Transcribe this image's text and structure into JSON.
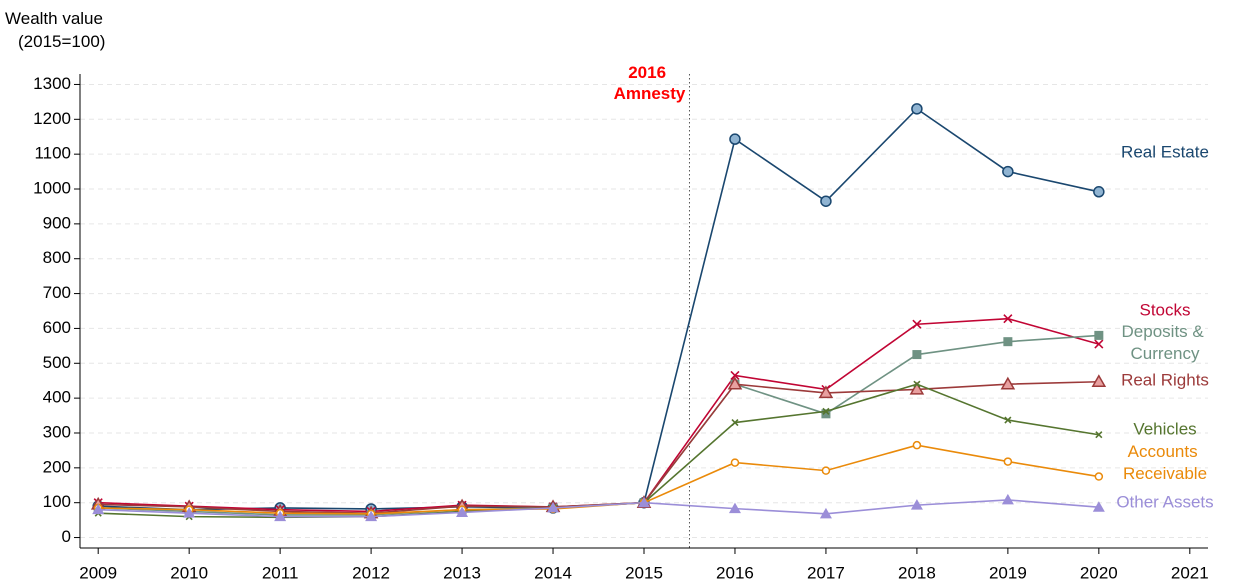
{
  "chart_data": {
    "type": "line",
    "y_label": "Wealth value (2015=100)",
    "annotation": "2016 Amnesty",
    "annotation_color": "#ff0000",
    "annotation_x": 2015.5,
    "x": [
      2009,
      2010,
      2011,
      2012,
      2013,
      2014,
      2015,
      2016,
      2017,
      2018,
      2019,
      2020
    ],
    "xlim": [
      2008.8,
      2021.2
    ],
    "xticks": [
      2009,
      2010,
      2011,
      2012,
      2013,
      2014,
      2015,
      2016,
      2017,
      2018,
      2019,
      2020,
      2021
    ],
    "ylim": [
      -30,
      1330
    ],
    "yticks": [
      0,
      100,
      200,
      300,
      400,
      500,
      600,
      700,
      800,
      900,
      1000,
      1100,
      1200,
      1300
    ],
    "grid": true,
    "series": [
      {
        "name": "Real Estate",
        "color": "#1a476f",
        "marker": "circle",
        "values": [
          90,
          80,
          85,
          82,
          88,
          85,
          100,
          1143,
          965,
          1230,
          1050,
          992
        ]
      },
      {
        "name": "Stocks",
        "color": "#c10534",
        "marker": "x",
        "values": [
          100,
          90,
          80,
          75,
          93,
          88,
          100,
          465,
          425,
          612,
          628,
          555
        ]
      },
      {
        "name": "Deposits & Currency",
        "color": "#6f9283",
        "marker": "square",
        "values": [
          85,
          75,
          65,
          65,
          80,
          85,
          100,
          440,
          355,
          525,
          562,
          580
        ]
      },
      {
        "name": "Real Rights",
        "color": "#9c3a3a",
        "marker": "triangle",
        "values": [
          95,
          88,
          75,
          70,
          90,
          88,
          100,
          440,
          415,
          425,
          440,
          447
        ]
      },
      {
        "name": "Vehicles",
        "color": "#55752f",
        "marker": "smallx",
        "values": [
          70,
          60,
          58,
          60,
          75,
          85,
          100,
          330,
          362,
          440,
          337,
          295
        ]
      },
      {
        "name": "Accounts Receivable",
        "color": "#ea8a0a",
        "marker": "hollow",
        "values": [
          85,
          80,
          70,
          68,
          80,
          82,
          100,
          215,
          192,
          265,
          218,
          175
        ]
      },
      {
        "name": "Other Assets",
        "color": "#9b8ed8",
        "marker": "filledtriangle",
        "values": [
          80,
          70,
          60,
          60,
          72,
          85,
          100,
          83,
          68,
          93,
          108,
          87
        ]
      }
    ]
  }
}
